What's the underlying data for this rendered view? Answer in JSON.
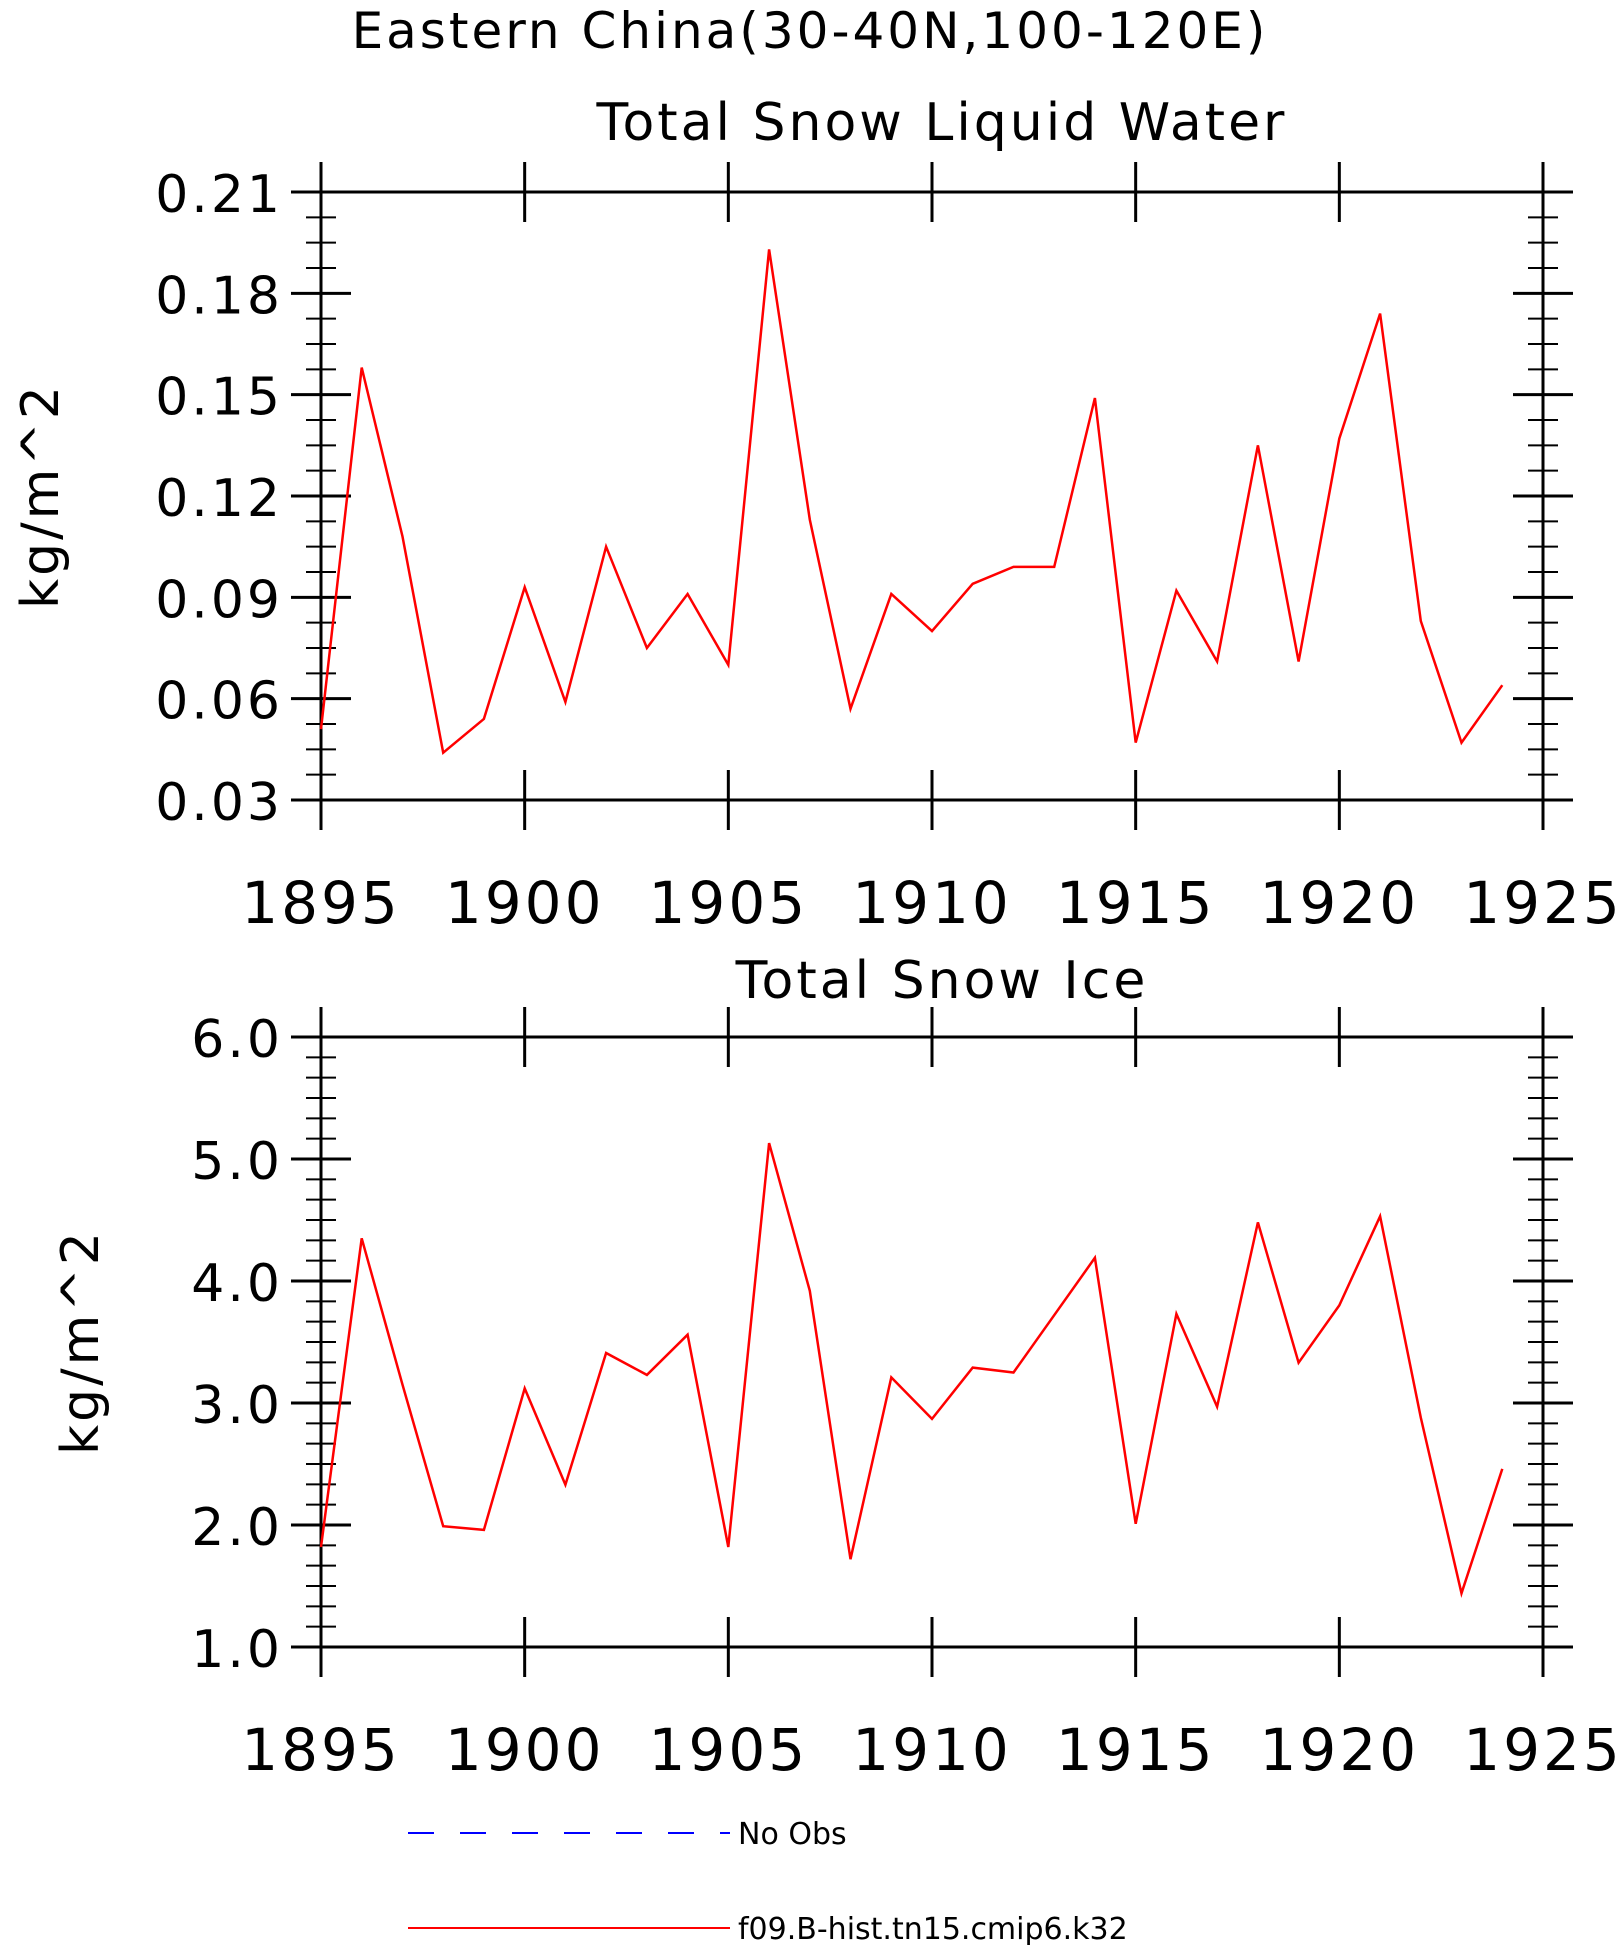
{
  "figure_title": "Eastern China(30-40N,100-120E)",
  "chart_data": [
    {
      "type": "line",
      "title": "Total Snow Liquid Water",
      "ylabel": "kg/m^2",
      "xlabel": "",
      "xlim": [
        1895,
        1925
      ],
      "ylim": [
        0.03,
        0.21
      ],
      "xticks": [
        "1895",
        "1900",
        "1905",
        "1910",
        "1915",
        "1920",
        "1925"
      ],
      "yticks": [
        "0.03",
        "0.06",
        "0.09",
        "0.12",
        "0.15",
        "0.18",
        "0.21"
      ],
      "x": [
        1895,
        1896,
        1897,
        1898,
        1899,
        1900,
        1901,
        1902,
        1903,
        1904,
        1905,
        1906,
        1907,
        1908,
        1909,
        1910,
        1911,
        1912,
        1913,
        1914,
        1915,
        1916,
        1917,
        1918,
        1919,
        1920,
        1921,
        1922,
        1923,
        1924
      ],
      "series": [
        {
          "name": "f09.B-hist.tn15.cmip6.k32",
          "color": "#ff0000",
          "values": [
            0.051,
            0.158,
            0.108,
            0.044,
            0.054,
            0.093,
            0.059,
            0.105,
            0.075,
            0.091,
            0.07,
            0.193,
            0.113,
            0.057,
            0.091,
            0.08,
            0.094,
            0.099,
            0.099,
            0.149,
            0.047,
            0.092,
            0.071,
            0.135,
            0.071,
            0.137,
            0.174,
            0.083,
            0.047,
            0.064
          ]
        }
      ]
    },
    {
      "type": "line",
      "title": "Total Snow Ice",
      "ylabel": "kg/m^2",
      "xlabel": "",
      "xlim": [
        1895,
        1925
      ],
      "ylim": [
        1.0,
        6.0
      ],
      "xticks": [
        "1895",
        "1900",
        "1905",
        "1910",
        "1915",
        "1920",
        "1925"
      ],
      "yticks": [
        "1.0",
        "2.0",
        "3.0",
        "4.0",
        "5.0",
        "6.0"
      ],
      "x": [
        1895,
        1896,
        1897,
        1898,
        1899,
        1900,
        1901,
        1902,
        1903,
        1904,
        1905,
        1906,
        1907,
        1908,
        1909,
        1910,
        1911,
        1912,
        1913,
        1914,
        1915,
        1916,
        1917,
        1918,
        1919,
        1920,
        1921,
        1922,
        1923,
        1924
      ],
      "series": [
        {
          "name": "f09.B-hist.tn15.cmip6.k32",
          "color": "#ff0000",
          "values": [
            1.82,
            4.35,
            3.15,
            1.99,
            1.96,
            3.12,
            2.33,
            3.41,
            3.23,
            3.56,
            1.82,
            5.13,
            3.92,
            1.72,
            3.21,
            2.87,
            3.29,
            3.25,
            3.72,
            4.19,
            2.01,
            3.73,
            2.97,
            4.48,
            3.33,
            3.8,
            4.53,
            2.88,
            1.44,
            2.46
          ]
        }
      ]
    }
  ],
  "legend": [
    {
      "label": "No Obs",
      "color": "#0000ff",
      "style": "dashed"
    },
    {
      "label": "f09.B-hist.tn15.cmip6.k32",
      "color": "#ff0000",
      "style": "solid"
    }
  ]
}
